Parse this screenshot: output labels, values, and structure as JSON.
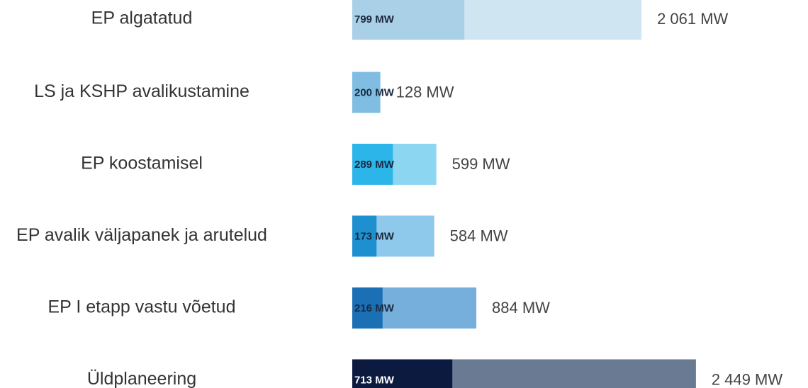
{
  "chart_data": {
    "type": "bar",
    "orientation": "horizontal",
    "barmode": "overlay",
    "categories": [
      "EP algatatud",
      "LS ja KSHP avalikustamine",
      "EP koostamisel",
      "EP avalik väljapanek ja arutelud",
      "EP I etapp vastu võetud",
      "Üldplaneering"
    ],
    "xlim": [
      0,
      2500
    ],
    "series": [
      {
        "values": [
          2061,
          128,
          599,
          584,
          884,
          2449
        ],
        "value_labels": [
          "2 061 MW",
          "128 MW",
          "599 MW",
          "584 MW",
          "884 MW",
          "2 449 MW"
        ],
        "colors": [
          "#d0e5f2",
          "#cfe6f4",
          "#8dd6f2",
          "#8ec8ea",
          "#76afdb",
          "#6b7a93"
        ],
        "label_position": "outside",
        "label_colors": [
          "#444444",
          "#444444",
          "#444444",
          "#444444",
          "#444444",
          "#444444"
        ]
      },
      {
        "values": [
          799,
          200,
          289,
          173,
          216,
          713
        ],
        "value_labels": [
          "799 MW",
          "200 MW",
          "289 MW",
          "173 MW",
          "216 MW",
          "713 MW"
        ],
        "colors": [
          "#a9d0e6",
          "#7fbde2",
          "#2bb5e8",
          "#1e90d0",
          "#1a6fb5",
          "#0c1a40"
        ],
        "label_position": "inside",
        "label_colors": [
          "#1a2a40",
          "#1a2a40",
          "#1a2a40",
          "#1a2a40",
          "#1a2a40",
          "#ffffff"
        ]
      }
    ]
  }
}
